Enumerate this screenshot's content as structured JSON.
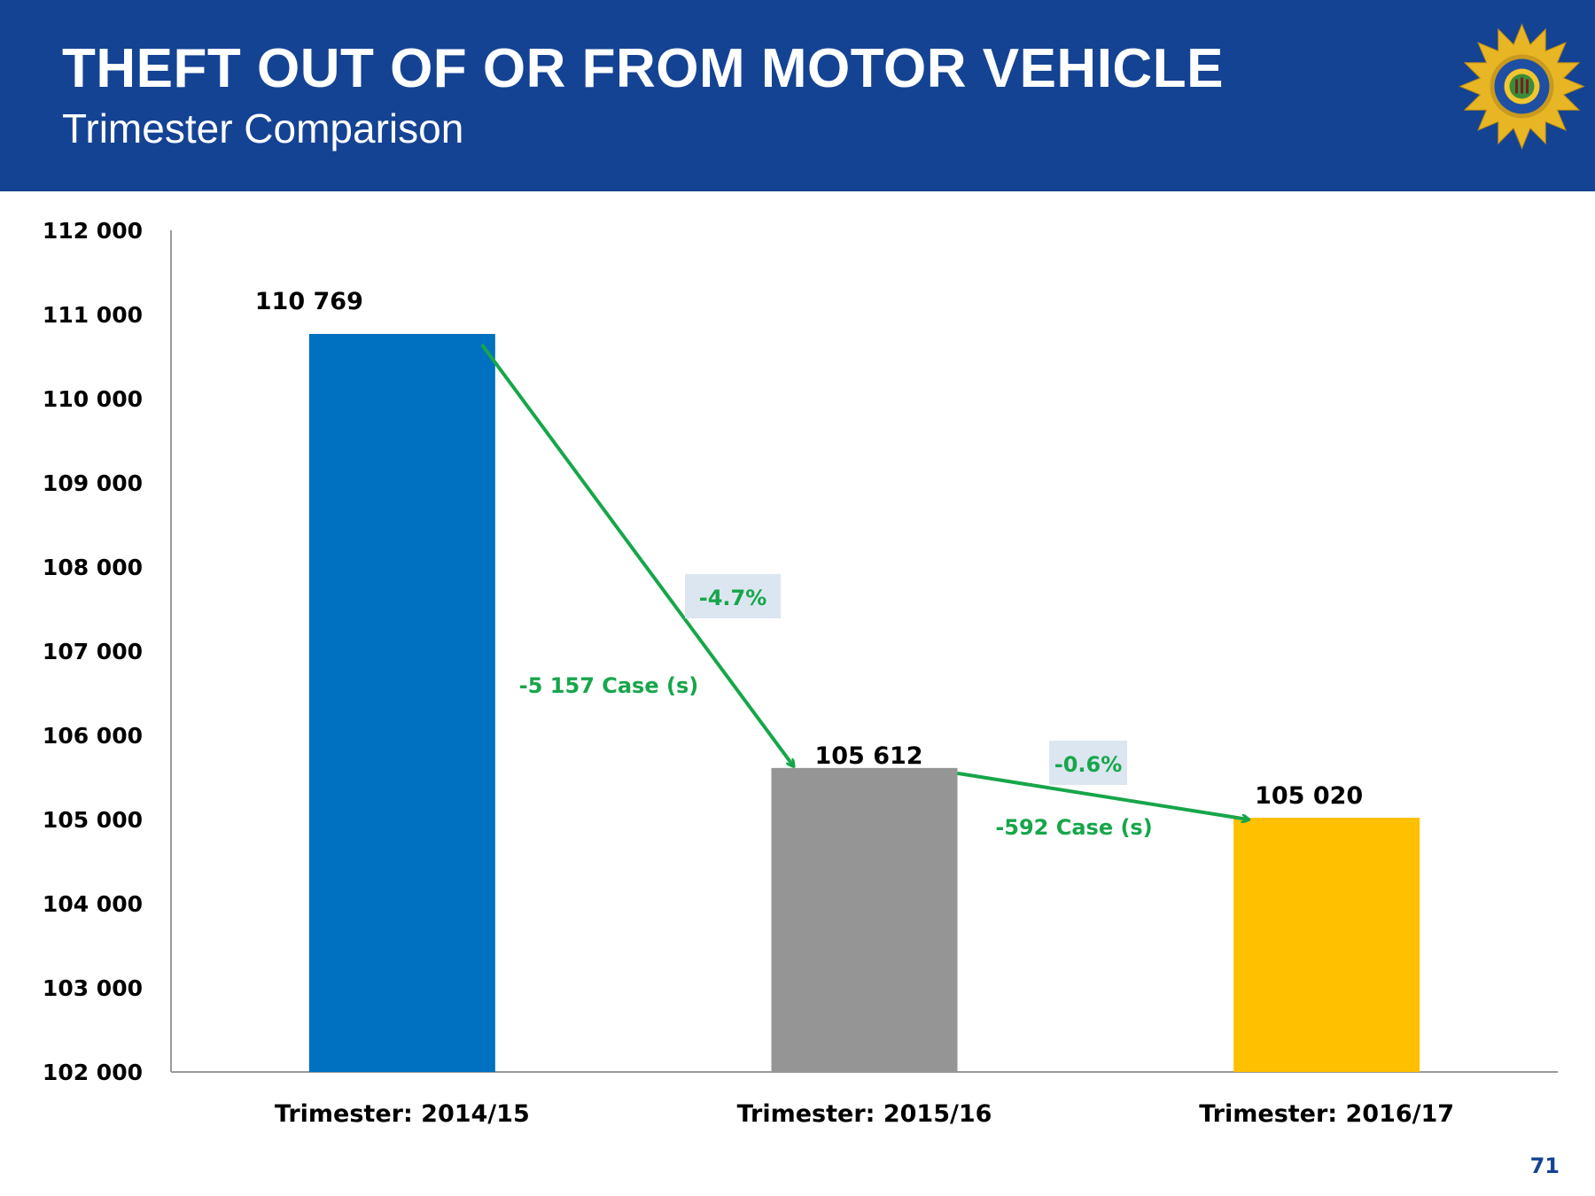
{
  "header": {
    "title": "THEFT OUT OF OR FROM MOTOR VEHICLE",
    "subtitle": "Trimester Comparison",
    "background_color": "#154394",
    "logo_icon": "saps-star-badge-icon"
  },
  "chart_data": {
    "type": "bar",
    "title": "THEFT OUT OF OR FROM MOTOR VEHICLE",
    "subtitle": "Trimester Comparison",
    "categories": [
      "Trimester: 2014/15",
      "Trimester: 2015/16",
      "Trimester: 2016/17"
    ],
    "values": [
      110769,
      105612,
      105020
    ],
    "value_labels": [
      "110 769",
      "105 612",
      "105 020"
    ],
    "colors": [
      "#0070c0",
      "#959595",
      "#ffc000"
    ],
    "ylim": [
      102000,
      112000
    ],
    "yticks": [
      102000,
      103000,
      104000,
      105000,
      106000,
      107000,
      108000,
      109000,
      110000,
      111000,
      112000
    ],
    "ytick_labels": [
      "102 000",
      "103 000",
      "104 000",
      "105 000",
      "106 000",
      "107 000",
      "108 000",
      "109 000",
      "110 000",
      "111 000",
      "112 000"
    ],
    "xlabel": "",
    "ylabel": "",
    "grid": false,
    "annotations": [
      {
        "from": 0,
        "to": 1,
        "percent": "-4.7%",
        "cases": "-5 157 Case (s)"
      },
      {
        "from": 1,
        "to": 2,
        "percent": "-0.6%",
        "cases": "-592 Case (s)"
      }
    ],
    "arrow_color": "#17a64a",
    "percent_box_color": "#dce6f1"
  },
  "footer": {
    "page_number": "71"
  }
}
